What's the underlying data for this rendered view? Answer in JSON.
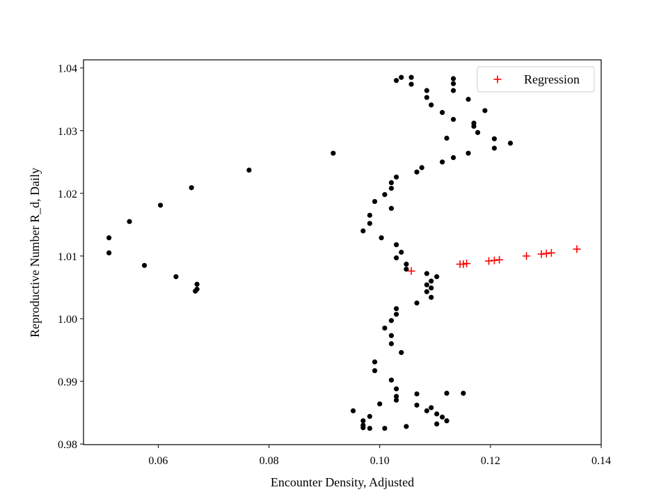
{
  "chart_data": {
    "type": "scatter",
    "title": "",
    "xlabel": "Encounter Density, Adjusted",
    "ylabel": "Reproductive Number R_d, Daily",
    "xlim": [
      0.0465,
      0.14
    ],
    "ylim": [
      0.9799,
      1.0413
    ],
    "xticks": [
      0.06,
      0.08,
      0.1,
      0.12,
      0.14
    ],
    "xtick_labels": [
      "0.06",
      "0.08",
      "0.10",
      "0.12",
      "0.14"
    ],
    "yticks": [
      0.98,
      0.99,
      1.0,
      1.01,
      1.02,
      1.03,
      1.04
    ],
    "ytick_labels": [
      "0.98",
      "0.99",
      "1.00",
      "1.01",
      "1.02",
      "1.03",
      "1.04"
    ],
    "grid": false,
    "legend_position": "top-right",
    "series": [
      {
        "marker": "dot",
        "color": "#000000",
        "points": [
          [
            0.103,
            1.038
          ],
          [
            0.1039,
            1.0385
          ],
          [
            0.1057,
            1.0385
          ],
          [
            0.1057,
            1.0374
          ],
          [
            0.1133,
            1.0383
          ],
          [
            0.1133,
            1.0375
          ],
          [
            0.1085,
            1.0364
          ],
          [
            0.1133,
            1.0364
          ],
          [
            0.1085,
            1.0353
          ],
          [
            0.116,
            1.035
          ],
          [
            0.1093,
            1.0341
          ],
          [
            0.1113,
            1.0329
          ],
          [
            0.119,
            1.0332
          ],
          [
            0.1133,
            1.0318
          ],
          [
            0.117,
            1.0312
          ],
          [
            0.117,
            1.0307
          ],
          [
            0.1177,
            1.0297
          ],
          [
            0.1121,
            1.0288
          ],
          [
            0.1207,
            1.0287
          ],
          [
            0.1236,
            1.028
          ],
          [
            0.1207,
            1.0272
          ],
          [
            0.0916,
            1.0264
          ],
          [
            0.116,
            1.0264
          ],
          [
            0.1133,
            1.0257
          ],
          [
            0.1113,
            1.025
          ],
          [
            0.1076,
            1.0241
          ],
          [
            0.0764,
            1.0237
          ],
          [
            0.1067,
            1.0234
          ],
          [
            0.103,
            1.0226
          ],
          [
            0.1021,
            1.0217
          ],
          [
            0.1021,
            1.0208
          ],
          [
            0.066,
            1.0209
          ],
          [
            0.1009,
            1.0198
          ],
          [
            0.0991,
            1.0187
          ],
          [
            0.0604,
            1.0181
          ],
          [
            0.1021,
            1.0176
          ],
          [
            0.0982,
            1.0165
          ],
          [
            0.0548,
            1.0155
          ],
          [
            0.0982,
            1.0152
          ],
          [
            0.097,
            1.014
          ],
          [
            0.0511,
            1.0129
          ],
          [
            0.1003,
            1.0129
          ],
          [
            0.103,
            1.0118
          ],
          [
            0.1039,
            1.0106
          ],
          [
            0.0511,
            1.0105
          ],
          [
            0.103,
            1.0097
          ],
          [
            0.1048,
            1.0087
          ],
          [
            0.0575,
            1.0085
          ],
          [
            0.1048,
            1.0079
          ],
          [
            0.1085,
            1.0072
          ],
          [
            0.0632,
            1.0067
          ],
          [
            0.1103,
            1.0067
          ],
          [
            0.1093,
            1.006
          ],
          [
            0.067,
            1.0055
          ],
          [
            0.1085,
            1.0054
          ],
          [
            0.1093,
            1.0049
          ],
          [
            0.067,
            1.0047
          ],
          [
            0.0667,
            1.0044
          ],
          [
            0.1085,
            1.0043
          ],
          [
            0.1093,
            1.0034
          ],
          [
            0.1067,
            1.0025
          ],
          [
            0.103,
            1.0016
          ],
          [
            0.103,
            1.0007
          ],
          [
            0.1021,
            0.9997
          ],
          [
            0.1009,
            0.9985
          ],
          [
            0.1021,
            0.9973
          ],
          [
            0.1021,
            0.996
          ],
          [
            0.1039,
            0.9946
          ],
          [
            0.0991,
            0.9931
          ],
          [
            0.0991,
            0.9917
          ],
          [
            0.1021,
            0.9902
          ],
          [
            0.103,
            0.9888
          ],
          [
            0.103,
            0.9876
          ],
          [
            0.1067,
            0.988
          ],
          [
            0.1121,
            0.9881
          ],
          [
            0.1151,
            0.9881
          ],
          [
            0.103,
            0.987
          ],
          [
            0.1,
            0.9864
          ],
          [
            0.1067,
            0.9862
          ],
          [
            0.1093,
            0.9858
          ],
          [
            0.0952,
            0.9853
          ],
          [
            0.1085,
            0.9853
          ],
          [
            0.1103,
            0.9848
          ],
          [
            0.0982,
            0.9844
          ],
          [
            0.1113,
            0.9843
          ],
          [
            0.097,
            0.9837
          ],
          [
            0.1121,
            0.9837
          ],
          [
            0.1103,
            0.9832
          ],
          [
            0.097,
            0.983
          ],
          [
            0.1048,
            0.9828
          ],
          [
            0.097,
            0.9826
          ],
          [
            0.0982,
            0.9825
          ],
          [
            0.1009,
            0.9825
          ]
        ]
      },
      {
        "name": "Regression",
        "marker": "plus",
        "color": "#ff0000",
        "points": [
          [
            0.1057,
            1.0076
          ],
          [
            0.1145,
            1.0087
          ],
          [
            0.1151,
            1.0087
          ],
          [
            0.1157,
            1.0088
          ],
          [
            0.1197,
            1.0092
          ],
          [
            0.1207,
            1.0093
          ],
          [
            0.1216,
            1.0094
          ],
          [
            0.1265,
            1.01
          ],
          [
            0.1292,
            1.0103
          ],
          [
            0.1301,
            1.0104
          ],
          [
            0.131,
            1.0105
          ],
          [
            0.1356,
            1.0111
          ]
        ]
      }
    ]
  }
}
